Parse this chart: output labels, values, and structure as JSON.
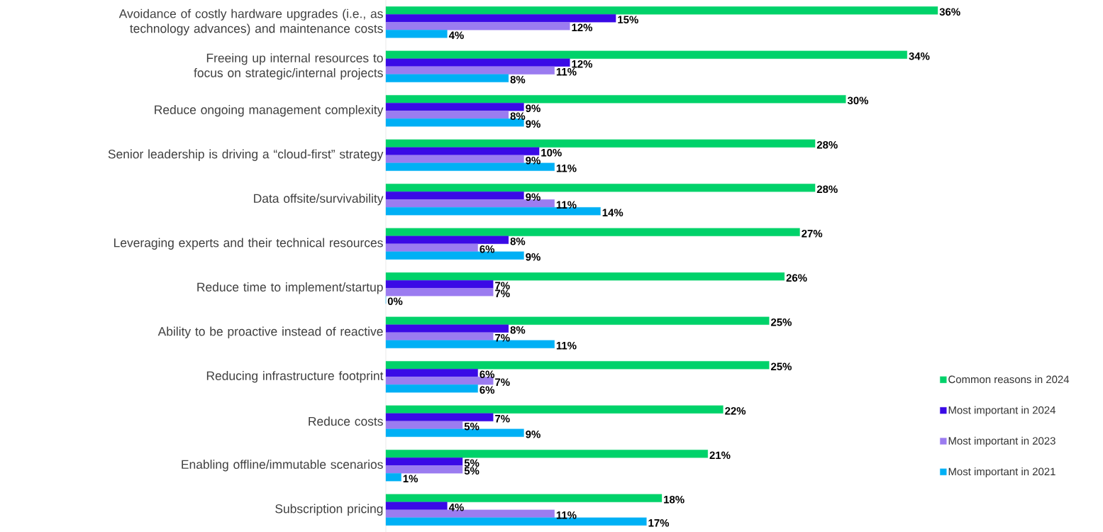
{
  "chart_data": {
    "type": "bar",
    "orientation": "horizontal",
    "legend": "right",
    "categories": [
      "Avoidance of costly hardware upgrades (i.e., as technology advances) and maintenance costs",
      "Freeing up internal resources to focus on strategic/internal projects",
      "Reduce ongoing management complexity",
      "Senior leadership is driving a “cloud-first” strategy",
      "Data offsite/survivability",
      "Leveraging experts and their technical resources",
      "Reduce time to implement/startup",
      "Ability to be proactive instead of reactive",
      "Reducing infrastructure footprint",
      "Reduce costs",
      "Enabling offline/immutable scenarios",
      "Subscription pricing"
    ],
    "series": [
      {
        "name": "Common reasons in 2024",
        "color": "#00d26a",
        "values": [
          36,
          34,
          30,
          28,
          28,
          27,
          26,
          25,
          25,
          22,
          21,
          18
        ],
        "value_labels": [
          "36%",
          "34%",
          "30%",
          "28%",
          "28%",
          "27%",
          "26%",
          "25%",
          "25%",
          "22%",
          "21%",
          "18%"
        ]
      },
      {
        "name": "Most important in 2024",
        "color": "#3a0ae6",
        "values": [
          15,
          12,
          9,
          10,
          9,
          8,
          7,
          8,
          6,
          7,
          5,
          4
        ],
        "value_labels": [
          "15%",
          "12%",
          "9%",
          "10%",
          "9%",
          "8%",
          "7%",
          "8%",
          "6%",
          "7%",
          "5%",
          "4%"
        ]
      },
      {
        "name": "Most important in 2023",
        "color": "#9b7cf0",
        "values": [
          12,
          11,
          8,
          9,
          11,
          6,
          7,
          7,
          7,
          5,
          5,
          11
        ],
        "value_labels": [
          "12%",
          "11%",
          "8%",
          "9%",
          "11%",
          "6%",
          "7%",
          "7%",
          "7%",
          "5%",
          "5%",
          "11%"
        ]
      },
      {
        "name": "Most important in 2021",
        "color": "#00b0f5",
        "values": [
          4,
          8,
          9,
          11,
          14,
          9,
          0,
          11,
          6,
          9,
          1,
          17
        ],
        "value_labels": [
          "4%",
          "8%",
          "9%",
          "11%",
          "14%",
          "9%",
          "0%",
          "11%",
          "6%",
          "9%",
          "1%",
          "17%"
        ]
      }
    ]
  }
}
